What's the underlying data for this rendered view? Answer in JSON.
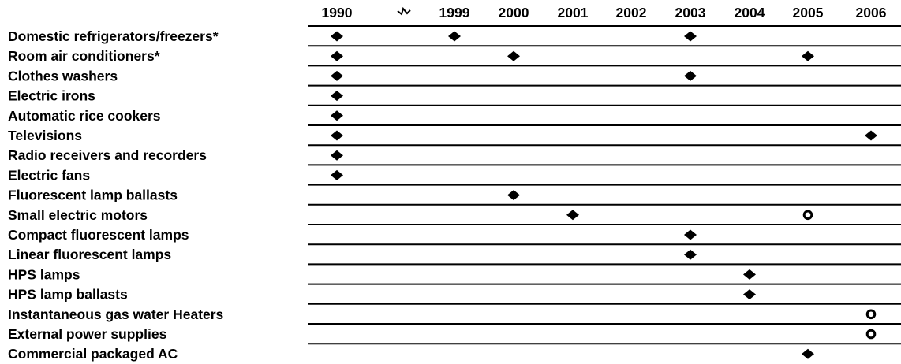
{
  "chart_data": {
    "type": "table",
    "columns": [
      "1990",
      "1999",
      "2000",
      "2001",
      "2002",
      "2003",
      "2004",
      "2005",
      "2006"
    ],
    "axis_break_after": "1990",
    "rows": [
      {
        "label": "Domestic refrigerators/freezers*",
        "filled": [
          "1990",
          "1999",
          "2003"
        ],
        "open": []
      },
      {
        "label": "Room air conditioners*",
        "filled": [
          "1990",
          "2000",
          "2005"
        ],
        "open": []
      },
      {
        "label": "Clothes washers",
        "filled": [
          "1990",
          "2003"
        ],
        "open": []
      },
      {
        "label": "Electric irons",
        "filled": [
          "1990"
        ],
        "open": []
      },
      {
        "label": "Automatic rice cookers",
        "filled": [
          "1990"
        ],
        "open": []
      },
      {
        "label": "Televisions",
        "filled": [
          "1990",
          "2006"
        ],
        "open": []
      },
      {
        "label": "Radio receivers and recorders",
        "filled": [
          "1990"
        ],
        "open": []
      },
      {
        "label": "Electric fans",
        "filled": [
          "1990"
        ],
        "open": []
      },
      {
        "label": "Fluorescent lamp ballasts",
        "filled": [
          "2000"
        ],
        "open": []
      },
      {
        "label": "Small electric motors",
        "filled": [
          "2001"
        ],
        "open": [
          "2005"
        ]
      },
      {
        "label": "Compact fluorescent lamps",
        "filled": [
          "2003"
        ],
        "open": []
      },
      {
        "label": "Linear fluorescent lamps",
        "filled": [
          "2003"
        ],
        "open": []
      },
      {
        "label": "HPS lamps",
        "filled": [
          "2004"
        ],
        "open": []
      },
      {
        "label": "HPS lamp ballasts",
        "filled": [
          "2004"
        ],
        "open": []
      },
      {
        "label": "Instantaneous gas water Heaters",
        "filled": [],
        "open": [
          "2006"
        ]
      },
      {
        "label": "External power supplies",
        "filled": [],
        "open": [
          "2006"
        ]
      },
      {
        "label": "Commercial packaged AC",
        "filled": [
          "2005"
        ],
        "open": []
      }
    ],
    "markers": {
      "filled": "diamond",
      "open": "circle"
    },
    "colors": {
      "ink": "#000000",
      "background": "#ffffff"
    }
  }
}
